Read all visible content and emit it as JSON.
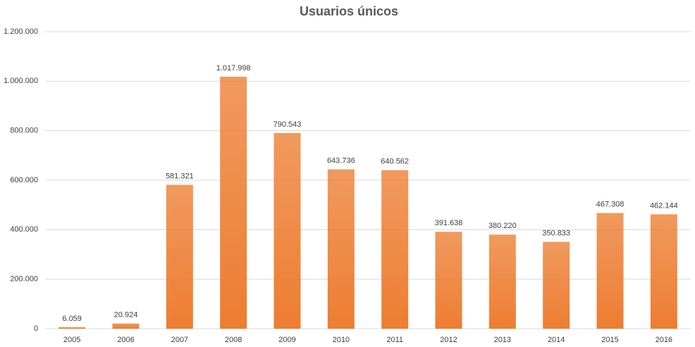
{
  "chart_data": {
    "type": "bar",
    "title": "Usuarios únicos",
    "categories": [
      "2005",
      "2006",
      "2007",
      "2008",
      "2009",
      "2010",
      "2011",
      "2012",
      "2013",
      "2014",
      "2015",
      "2016"
    ],
    "values": [
      6059,
      20924,
      581321,
      1017998,
      790543,
      643736,
      640562,
      391638,
      380220,
      350833,
      467308,
      462144
    ],
    "value_labels": [
      "6.059",
      "20.924",
      "581.321",
      "1.017.998",
      "790.543",
      "643.736",
      "640.562",
      "391.638",
      "380.220",
      "350.833",
      "467.308",
      "462.144"
    ],
    "color": "#ed7d31",
    "ylim": [
      0,
      1200000
    ],
    "yticks": [
      0,
      {
        "value": 200000,
        "label": "200.000"
      },
      {
        "value": 400000,
        "label": "400.000"
      },
      {
        "value": 600000,
        "label": "600.000"
      },
      {
        "value": 800000,
        "label": "800.000"
      },
      {
        "value": 1000000,
        "label": "1.000.000"
      },
      {
        "value": 1200000,
        "label": "1.200.000"
      }
    ],
    "grid": true
  }
}
